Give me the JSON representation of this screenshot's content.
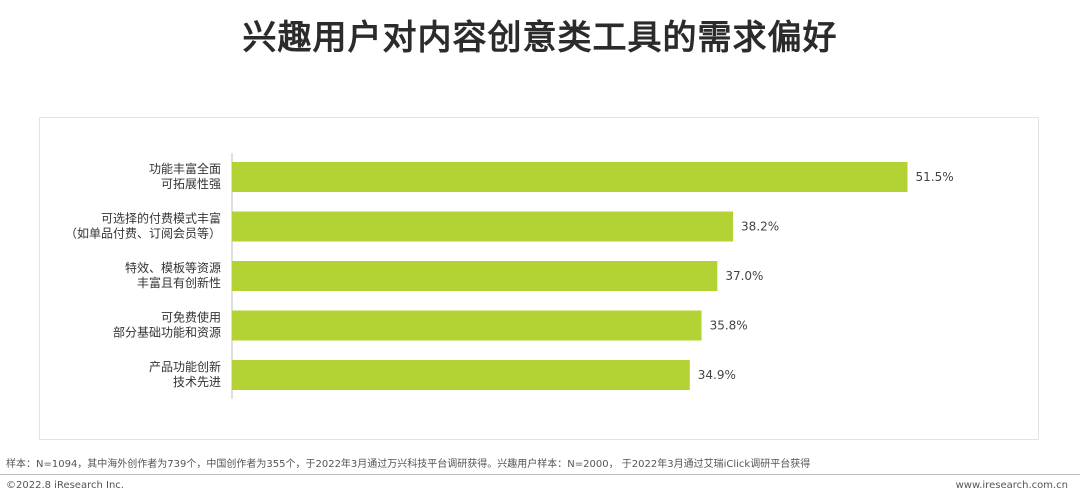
{
  "title": "兴趣用户对内容创意类工具的需求偏好",
  "chart_data": {
    "type": "bar",
    "orientation": "horizontal",
    "categories": [
      [
        "功能丰富全面",
        "可拓展性强"
      ],
      [
        "可选择的付费模式丰富",
        "（如单品付费、订阅会员等）"
      ],
      [
        "特效、模板等资源",
        "丰富且有创新性"
      ],
      [
        "可免费使用",
        "部分基础功能和资源"
      ],
      [
        "产品功能创新",
        "技术先进"
      ]
    ],
    "values": [
      51.5,
      38.2,
      37.0,
      35.8,
      34.9
    ],
    "value_labels": [
      "51.5%",
      "38.2%",
      "37.0%",
      "35.8%",
      "34.9%"
    ],
    "unit": "%",
    "xlim": [
      0,
      60
    ],
    "bar_color": "#b3d334",
    "grid": false,
    "legend": "none"
  },
  "note": "样本：N=1094，其中海外创作者为739个，中国创作者为355个，于2022年3月通过万兴科技平台调研获得。兴趣用户样本：N=2000， 于2022年3月通过艾瑞iClick调研平台获得",
  "footer": {
    "copyright": "©2022.8 iResearch Inc.",
    "website": "www.iresearch.com.cn"
  }
}
